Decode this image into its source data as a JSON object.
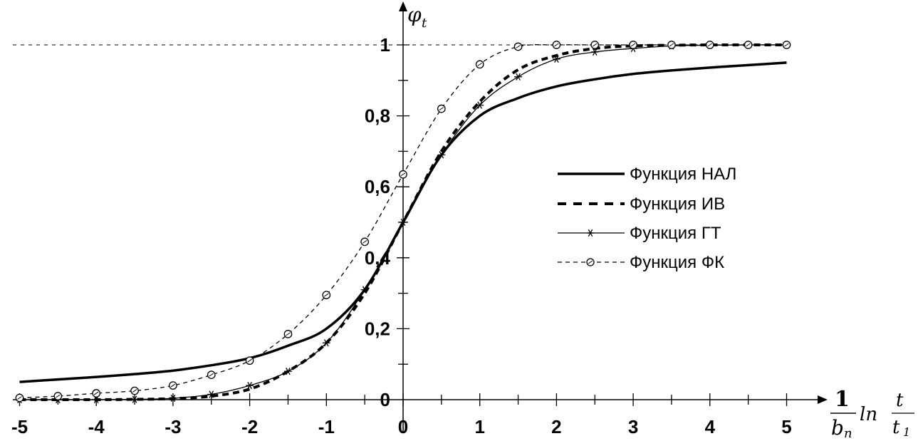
{
  "chart_data": {
    "type": "line",
    "y_axis_label": "φ",
    "y_axis_label_sub": "t",
    "x_axis_label": {
      "numerator": "1",
      "denominator": "b",
      "denominator_sub": "n",
      "func": "ln",
      "frac_num": "t",
      "frac_den": "t",
      "frac_den_sub": "1"
    },
    "xlim": [
      -5,
      5
    ],
    "ylim": [
      0,
      1
    ],
    "x_ticks": [
      -5,
      -4,
      -3,
      -2,
      -1,
      0,
      1,
      2,
      3,
      4,
      5
    ],
    "x_tick_labels": [
      "-5",
      "-4",
      "-3",
      "-2",
      "-1",
      "0",
      "1",
      "2",
      "3",
      "4",
      "5"
    ],
    "y_ticks": [
      0,
      0.2,
      0.4,
      0.6,
      0.8,
      1
    ],
    "y_tick_labels": [
      "0",
      "0,2",
      "0,4",
      "0,6",
      "0,8",
      "1"
    ],
    "reference_line": 1,
    "legend_position": "right",
    "series": [
      {
        "name": "Функция НАЛ",
        "style": "solid-thick",
        "x": [
          -5,
          -4.5,
          -4,
          -3.5,
          -3,
          -2.5,
          -2,
          -1.5,
          -1,
          -0.5,
          0,
          0.5,
          1,
          1.5,
          2,
          2.5,
          3,
          3.5,
          4,
          4.5,
          5
        ],
        "values": [
          0.05,
          0.057,
          0.064,
          0.072,
          0.082,
          0.097,
          0.117,
          0.152,
          0.2,
          0.31,
          0.5,
          0.69,
          0.8,
          0.85,
          0.883,
          0.903,
          0.918,
          0.928,
          0.936,
          0.943,
          0.95
        ]
      },
      {
        "name": "Функция ИВ",
        "style": "dashed-thick",
        "x": [
          -5,
          -4.5,
          -4,
          -3.5,
          -3,
          -2.5,
          -2,
          -1.5,
          -1,
          -0.5,
          0,
          0.5,
          1,
          1.5,
          2,
          2.5,
          3,
          3.5,
          4,
          4.5,
          5
        ],
        "values": [
          0,
          0,
          0,
          0.001,
          0.003,
          0.01,
          0.03,
          0.08,
          0.16,
          0.3,
          0.5,
          0.7,
          0.84,
          0.93,
          0.97,
          0.99,
          0.997,
          0.999,
          1,
          1,
          1
        ]
      },
      {
        "name": "Функция ГТ",
        "style": "solid-thin-star",
        "x": [
          -5,
          -4.5,
          -4,
          -3.5,
          -3,
          -2.5,
          -2,
          -1.5,
          -1,
          -0.5,
          0,
          0.5,
          1,
          1.5,
          2,
          2.5,
          3,
          3.5,
          4,
          4.5,
          5
        ],
        "values": [
          0,
          0,
          0,
          0.001,
          0.004,
          0.015,
          0.04,
          0.08,
          0.16,
          0.31,
          0.5,
          0.69,
          0.83,
          0.91,
          0.96,
          0.98,
          0.99,
          0.997,
          0.999,
          1,
          1
        ]
      },
      {
        "name": "Функция ФК",
        "style": "dashed-thin-circle",
        "x": [
          -5,
          -4.5,
          -4,
          -3.5,
          -3,
          -2.5,
          -2,
          -1.5,
          -1,
          -0.5,
          0,
          0.5,
          1,
          1.5,
          2,
          2.5,
          3,
          3.5,
          4,
          4.5,
          5
        ],
        "values": [
          0.005,
          0.01,
          0.018,
          0.025,
          0.04,
          0.07,
          0.11,
          0.185,
          0.295,
          0.445,
          0.635,
          0.82,
          0.945,
          0.995,
          1,
          1,
          1,
          1,
          1,
          1,
          1
        ]
      }
    ]
  }
}
